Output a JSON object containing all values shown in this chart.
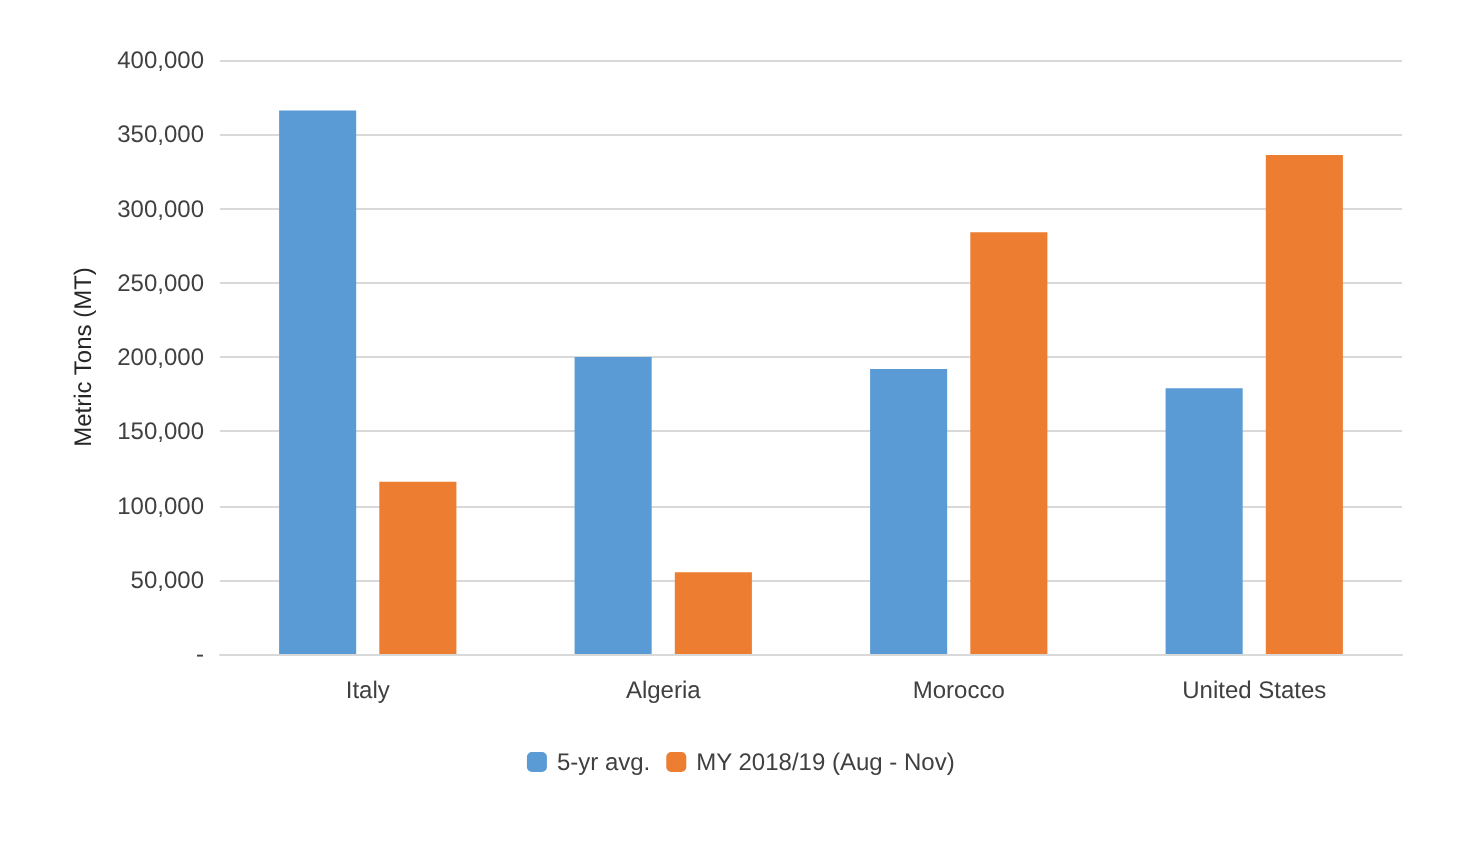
{
  "chart_data": {
    "type": "bar",
    "ylabel": "Metric Tons (MT)",
    "categories": [
      "Italy",
      "Algeria",
      "Morocco",
      "United States"
    ],
    "series": [
      {
        "name": "5-yr avg.",
        "color": "#5b9bd5",
        "values": [
          366000,
          200000,
          192000,
          179000
        ]
      },
      {
        "name": "MY 2018/19 (Aug - Nov)",
        "color": "#ed7d31",
        "values": [
          116000,
          55000,
          284000,
          336000
        ]
      }
    ],
    "ylim": [
      0,
      400000
    ],
    "yticks": [
      {
        "value": 0,
        "label": "-"
      },
      {
        "value": 50000,
        "label": "50,000"
      },
      {
        "value": 100000,
        "label": "100,000"
      },
      {
        "value": 150000,
        "label": "150,000"
      },
      {
        "value": 200000,
        "label": "200,000"
      },
      {
        "value": 250000,
        "label": "250,000"
      },
      {
        "value": 300000,
        "label": "300,000"
      },
      {
        "value": 350000,
        "label": "350,000"
      },
      {
        "value": 400000,
        "label": "400,000"
      }
    ],
    "grid": "y",
    "legend": "bottom"
  }
}
